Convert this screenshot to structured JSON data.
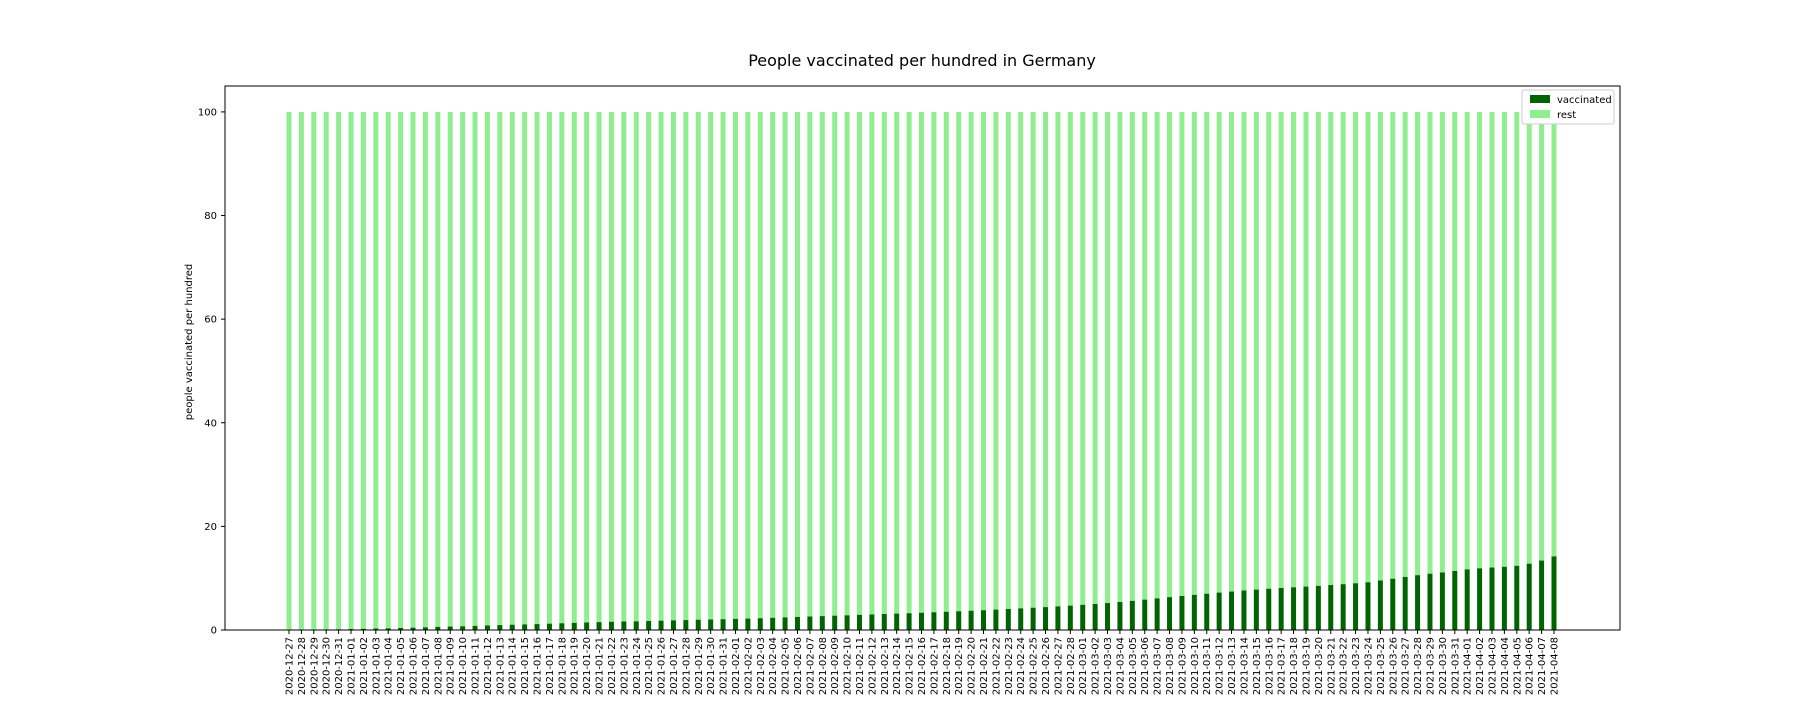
{
  "chart_data": {
    "type": "bar",
    "stacked": true,
    "title": "People vaccinated per hundred in Germany",
    "xlabel": "",
    "ylabel": "people vaccinated per hundred",
    "ylim": [
      0,
      105
    ],
    "yticks": [
      0,
      20,
      40,
      60,
      80,
      100
    ],
    "legend_position": "top-right",
    "categories": [
      "2020-12-27",
      "2020-12-28",
      "2020-12-29",
      "2020-12-30",
      "2020-12-31",
      "2021-01-01",
      "2021-01-02",
      "2021-01-03",
      "2021-01-04",
      "2021-01-05",
      "2021-01-06",
      "2021-01-07",
      "2021-01-08",
      "2021-01-09",
      "2021-01-10",
      "2021-01-11",
      "2021-01-12",
      "2021-01-13",
      "2021-01-14",
      "2021-01-15",
      "2021-01-16",
      "2021-01-17",
      "2021-01-18",
      "2021-01-19",
      "2021-01-20",
      "2021-01-21",
      "2021-01-22",
      "2021-01-23",
      "2021-01-24",
      "2021-01-25",
      "2021-01-26",
      "2021-01-27",
      "2021-01-28",
      "2021-01-29",
      "2021-01-30",
      "2021-01-31",
      "2021-02-01",
      "2021-02-02",
      "2021-02-03",
      "2021-02-04",
      "2021-02-05",
      "2021-02-06",
      "2021-02-07",
      "2021-02-08",
      "2021-02-09",
      "2021-02-10",
      "2021-02-11",
      "2021-02-12",
      "2021-02-13",
      "2021-02-14",
      "2021-02-15",
      "2021-02-16",
      "2021-02-17",
      "2021-02-18",
      "2021-02-19",
      "2021-02-20",
      "2021-02-21",
      "2021-02-22",
      "2021-02-23",
      "2021-02-24",
      "2021-02-25",
      "2021-02-26",
      "2021-02-27",
      "2021-02-28",
      "2021-03-01",
      "2021-03-02",
      "2021-03-03",
      "2021-03-04",
      "2021-03-05",
      "2021-03-06",
      "2021-03-07",
      "2021-03-08",
      "2021-03-09",
      "2021-03-10",
      "2021-03-11",
      "2021-03-12",
      "2021-03-13",
      "2021-03-14",
      "2021-03-15",
      "2021-03-16",
      "2021-03-17",
      "2021-03-18",
      "2021-03-19",
      "2021-03-20",
      "2021-03-21",
      "2021-03-22",
      "2021-03-23",
      "2021-03-24",
      "2021-03-25",
      "2021-03-26",
      "2021-03-27",
      "2021-03-28",
      "2021-03-29",
      "2021-03-30",
      "2021-03-31",
      "2021-04-01",
      "2021-04-02",
      "2021-04-03",
      "2021-04-04",
      "2021-04-05",
      "2021-04-06",
      "2021-04-07",
      "2021-04-08"
    ],
    "series": [
      {
        "name": "vaccinated",
        "color": "#006400",
        "values": [
          0.03,
          0.05,
          0.08,
          0.1,
          0.14,
          0.18,
          0.22,
          0.28,
          0.32,
          0.38,
          0.45,
          0.52,
          0.6,
          0.66,
          0.72,
          0.8,
          0.88,
          0.95,
          1.02,
          1.08,
          1.14,
          1.22,
          1.3,
          1.38,
          1.45,
          1.52,
          1.58,
          1.64,
          1.68,
          1.74,
          1.8,
          1.86,
          1.92,
          1.98,
          2.03,
          2.08,
          2.14,
          2.2,
          2.28,
          2.36,
          2.44,
          2.52,
          2.6,
          2.68,
          2.76,
          2.84,
          2.92,
          3.0,
          3.08,
          3.16,
          3.24,
          3.33,
          3.42,
          3.52,
          3.62,
          3.72,
          3.82,
          3.94,
          4.06,
          4.18,
          4.3,
          4.42,
          4.56,
          4.7,
          4.86,
          5.02,
          5.2,
          5.4,
          5.62,
          5.86,
          6.1,
          6.34,
          6.56,
          6.78,
          7.0,
          7.22,
          7.42,
          7.62,
          7.8,
          7.96,
          8.1,
          8.24,
          8.38,
          8.52,
          8.68,
          8.84,
          9.02,
          9.22,
          9.56,
          9.9,
          10.24,
          10.58,
          10.86,
          11.1,
          11.4,
          11.7,
          11.9,
          12.06,
          12.2,
          12.4,
          12.8,
          13.4,
          14.2
        ]
      },
      {
        "name": "rest",
        "color": "#90ee90",
        "values": "100 minus vaccinated"
      }
    ]
  }
}
